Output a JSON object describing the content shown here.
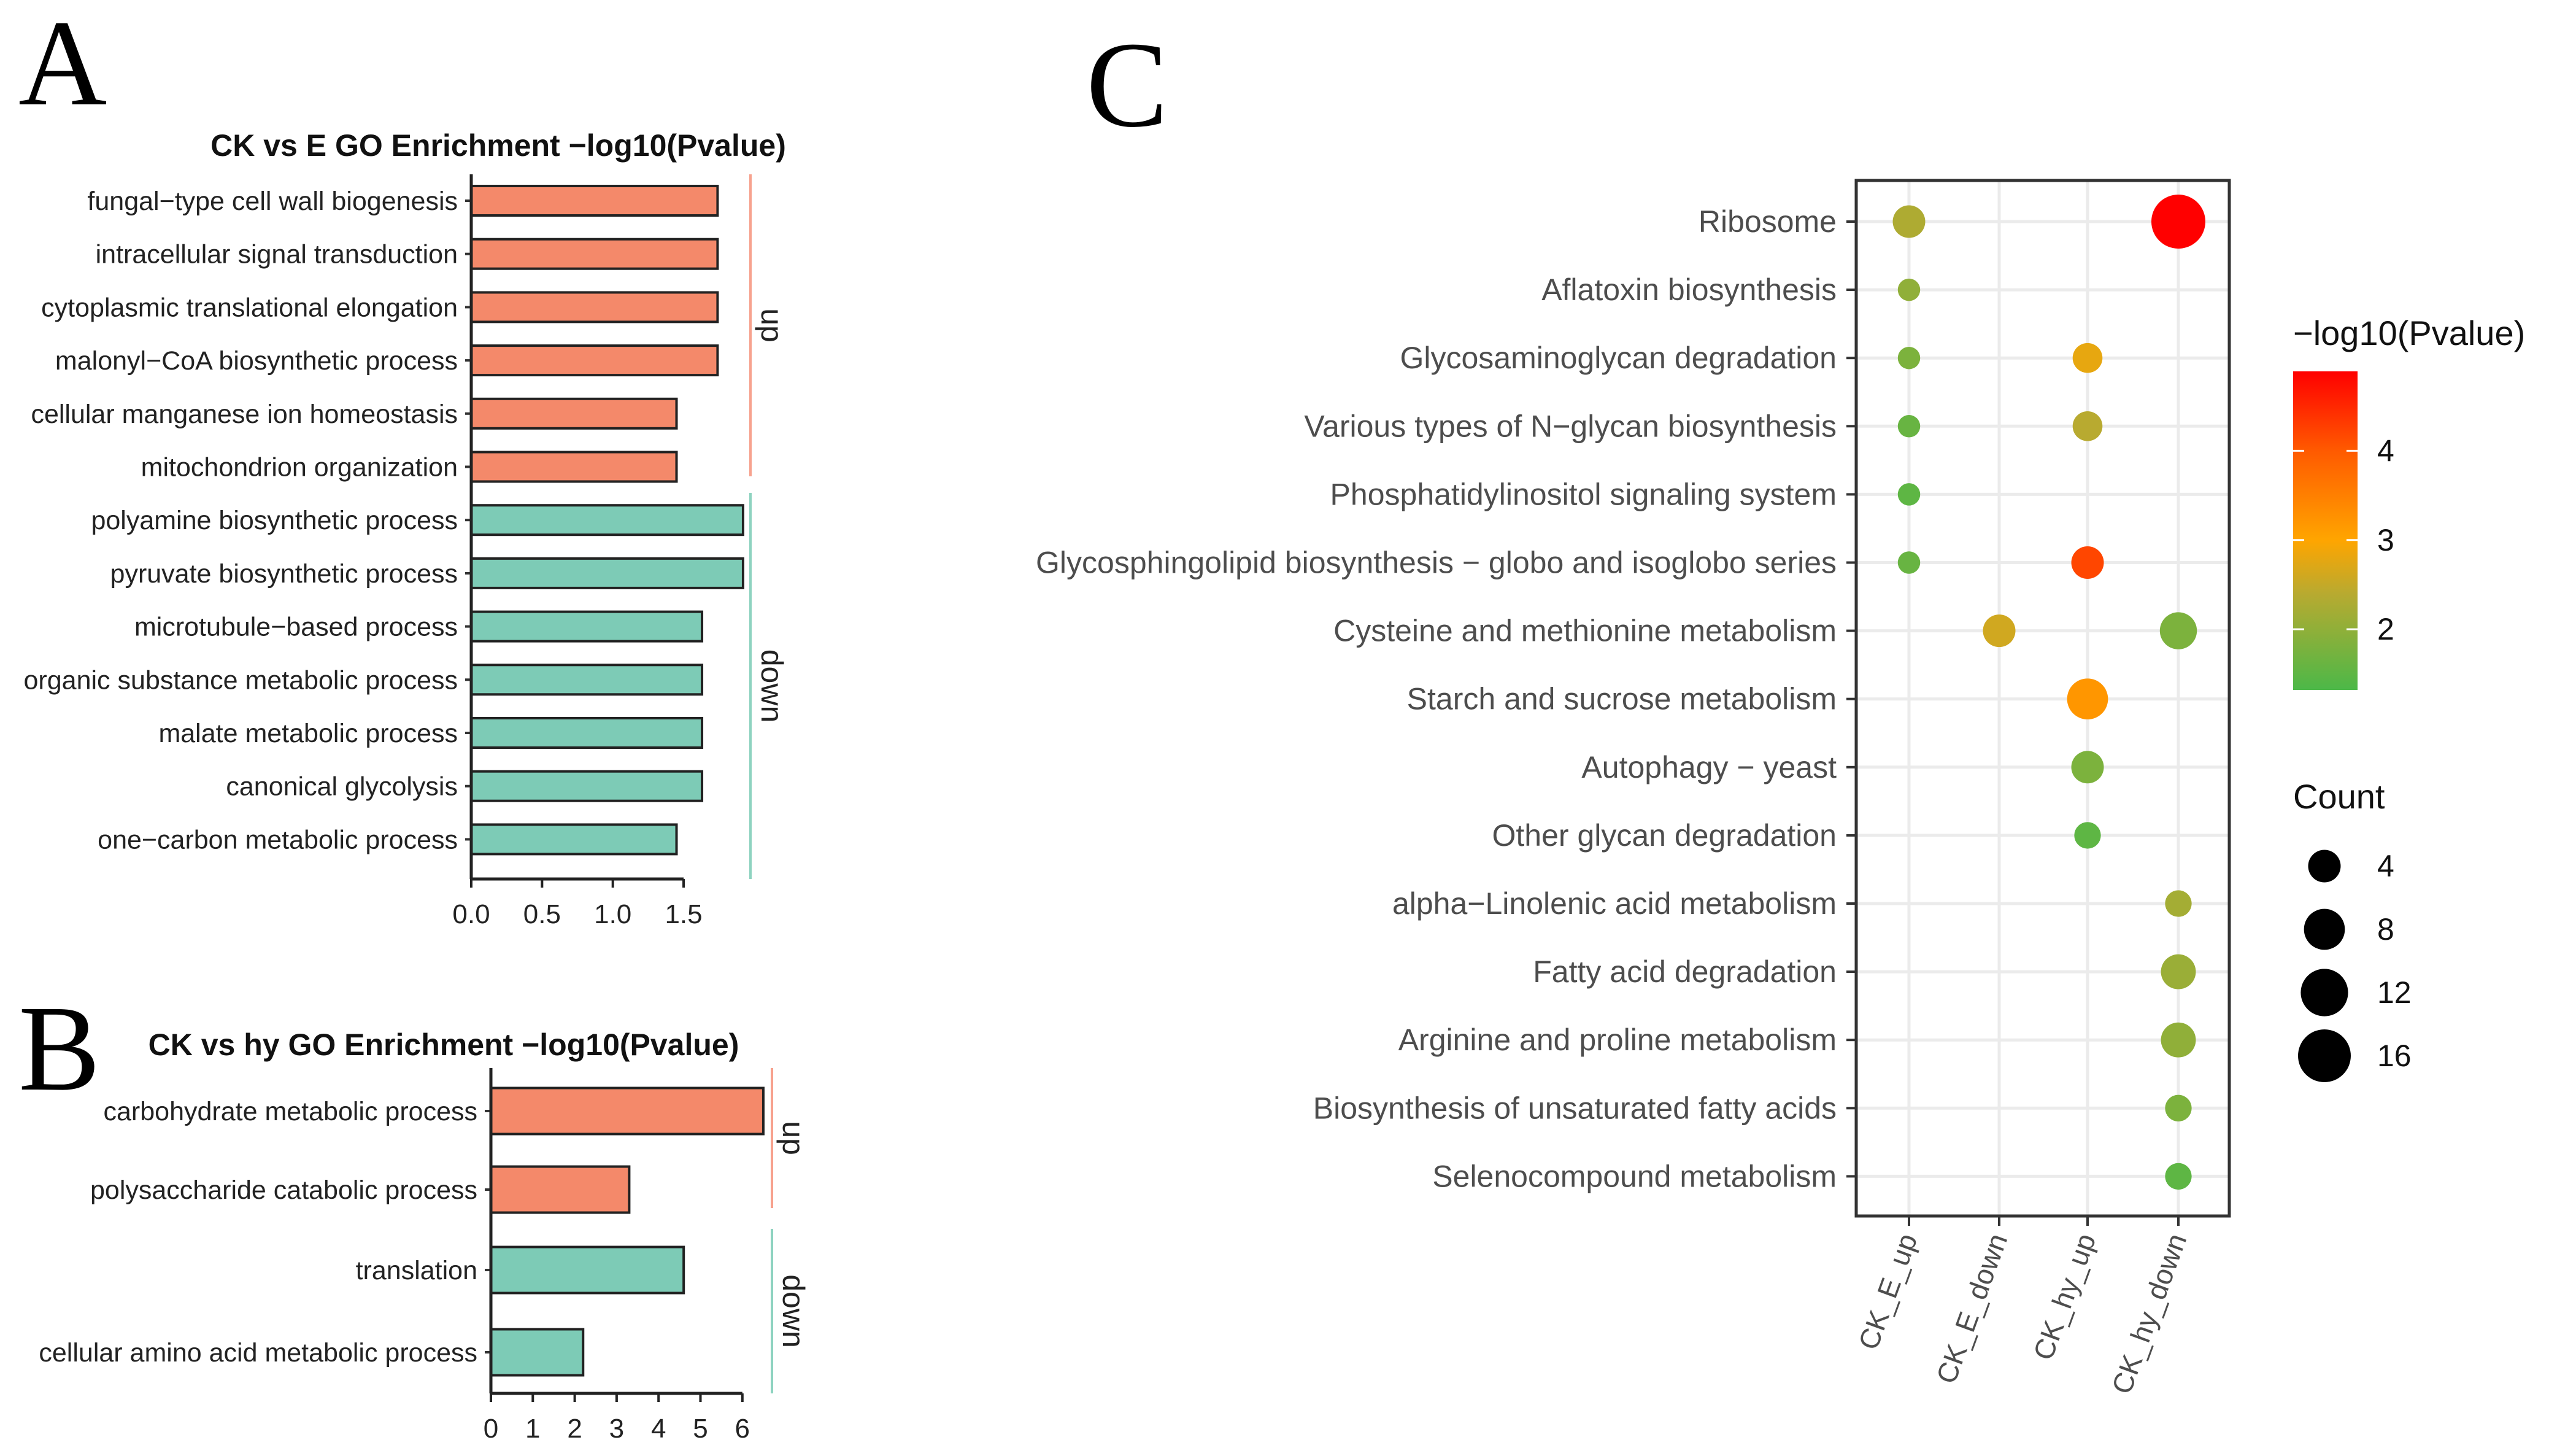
{
  "chart_data": [
    {
      "panel": "A",
      "type": "bar",
      "orientation": "horizontal",
      "title": "CK vs E GO Enrichment  −log10(Pvalue)",
      "categories": [
        "fungal−type cell wall biogenesis",
        "intracellular signal transduction",
        "cytoplasmic translational elongation",
        "malonyl−CoA biosynthetic process",
        "cellular manganese ion homeostasis",
        "mitochondrion organization",
        "polyamine biosynthetic process",
        "pyruvate biosynthetic process",
        "microtubule−based process",
        "organic substance metabolic process",
        "malate metabolic process",
        "canonical glycolysis",
        "one−carbon metabolic process"
      ],
      "values": [
        1.74,
        1.74,
        1.74,
        1.74,
        1.45,
        1.45,
        1.92,
        1.92,
        1.63,
        1.63,
        1.63,
        1.63,
        1.45
      ],
      "groups": [
        "up",
        "up",
        "up",
        "up",
        "up",
        "up",
        "down",
        "down",
        "down",
        "down",
        "down",
        "down",
        "down"
      ],
      "group_labels": [
        "up",
        "down"
      ],
      "xticks": [
        "0.0",
        "0.5",
        "1.0",
        "1.5"
      ],
      "xtick_values": [
        0,
        0.5,
        1.0,
        1.5
      ],
      "colors": {
        "up": "#F4896A",
        "down": "#7DCBB6",
        "up_strip": "#F7A28E",
        "down_strip": "#8ED3C0"
      }
    },
    {
      "panel": "B",
      "type": "bar",
      "orientation": "horizontal",
      "title": "CK vs hy GO Enrichment  −log10(Pvalue)",
      "categories": [
        "carbohydrate metabolic process",
        "polysaccharide catabolic process",
        "translation",
        "cellular amino acid metabolic process"
      ],
      "values": [
        6.5,
        3.3,
        4.6,
        2.2
      ],
      "groups": [
        "up",
        "up",
        "down",
        "down"
      ],
      "group_labels": [
        "up",
        "down"
      ],
      "xticks": [
        "0",
        "1",
        "2",
        "3",
        "4",
        "5",
        "6"
      ],
      "xtick_values": [
        0,
        1,
        2,
        3,
        4,
        5,
        6
      ],
      "colors": {
        "up": "#F4896A",
        "down": "#7DCBB6",
        "up_strip": "#F7A28E",
        "down_strip": "#8ED3C0"
      }
    },
    {
      "panel": "C",
      "type": "scatter",
      "subtype": "bubble",
      "x_categories": [
        "CK_E_up",
        "CK_E_down",
        "CK_hy_up",
        "CK_hy_down"
      ],
      "y_categories": [
        "Ribosome",
        "Aflatoxin biosynthesis",
        "Glycosaminoglycan degradation",
        "Various types of N−glycan biosynthesis",
        "Phosphatidylinositol signaling system",
        "Glycosphingolipid biosynthesis − globo and isoglobo series",
        "Cysteine and methionine metabolism",
        "Starch and sucrose metabolism",
        "Autophagy − yeast",
        "Other glycan degradation",
        "alpha−Linolenic acid metabolism",
        "Fatty acid degradation",
        "Arginine and proline metabolism",
        "Biosynthesis of unsaturated fatty acids",
        "Selenocompound metabolism"
      ],
      "points": [
        {
          "pathway": 0,
          "group": 0,
          "neglog10p": 2.3,
          "count": 4
        },
        {
          "pathway": 0,
          "group": 3,
          "neglog10p": 4.89,
          "count": 17
        },
        {
          "pathway": 1,
          "group": 0,
          "neglog10p": 2.0,
          "count": 1
        },
        {
          "pathway": 2,
          "group": 0,
          "neglog10p": 1.8,
          "count": 1
        },
        {
          "pathway": 2,
          "group": 2,
          "neglog10p": 2.8,
          "count": 3
        },
        {
          "pathway": 3,
          "group": 0,
          "neglog10p": 1.6,
          "count": 1
        },
        {
          "pathway": 3,
          "group": 2,
          "neglog10p": 2.4,
          "count": 3
        },
        {
          "pathway": 4,
          "group": 0,
          "neglog10p": 1.5,
          "count": 1
        },
        {
          "pathway": 5,
          "group": 0,
          "neglog10p": 1.6,
          "count": 1
        },
        {
          "pathway": 5,
          "group": 2,
          "neglog10p": 4.2,
          "count": 4
        },
        {
          "pathway": 6,
          "group": 1,
          "neglog10p": 2.6,
          "count": 4
        },
        {
          "pathway": 6,
          "group": 3,
          "neglog10p": 1.8,
          "count": 6
        },
        {
          "pathway": 7,
          "group": 2,
          "neglog10p": 3.2,
          "count": 8
        },
        {
          "pathway": 8,
          "group": 2,
          "neglog10p": 1.8,
          "count": 4
        },
        {
          "pathway": 9,
          "group": 2,
          "neglog10p": 1.5,
          "count": 2
        },
        {
          "pathway": 10,
          "group": 3,
          "neglog10p": 2.2,
          "count": 2
        },
        {
          "pathway": 11,
          "group": 3,
          "neglog10p": 2.1,
          "count": 5
        },
        {
          "pathway": 12,
          "group": 3,
          "neglog10p": 2.0,
          "count": 5
        },
        {
          "pathway": 13,
          "group": 3,
          "neglog10p": 1.8,
          "count": 2
        },
        {
          "pathway": 14,
          "group": 3,
          "neglog10p": 1.5,
          "count": 2
        }
      ],
      "color_legend": {
        "title": "−log10(Pvalue)",
        "range": [
          1.32,
          4.89
        ],
        "ticks": [
          "4",
          "3",
          "2"
        ],
        "tick_values": [
          4,
          3,
          2
        ],
        "stops": [
          {
            "v": 1.32,
            "c": "#4CB848"
          },
          {
            "v": 2.4,
            "c": "#B8AA30"
          },
          {
            "v": 3.0,
            "c": "#FFA500"
          },
          {
            "v": 4.0,
            "c": "#FF5A00"
          },
          {
            "v": 4.89,
            "c": "#FF0000"
          }
        ]
      },
      "size_legend": {
        "title": "Count",
        "values": [
          4,
          8,
          12,
          16
        ],
        "labels": [
          "4",
          "8",
          "12",
          "16"
        ]
      },
      "grid": true
    }
  ],
  "panel_letters": [
    "A",
    "B",
    "C"
  ]
}
